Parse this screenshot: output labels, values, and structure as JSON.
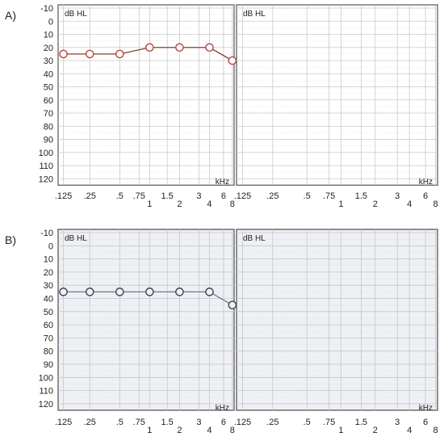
{
  "panels": [
    {
      "label": "A)",
      "theme": {
        "bg": "#ffffff",
        "grid": "#c9c9c9",
        "frame": "#555555",
        "line": "#8a3a34",
        "marker": "#b5473f"
      }
    },
    {
      "label": "B)",
      "theme": {
        "bg": "#eef0f4",
        "grid": "#c2c6cf",
        "frame": "#4a4a4a",
        "line": "#6f7684",
        "marker": "#3e4453"
      }
    }
  ],
  "chart_data": [
    {
      "type": "line",
      "panel": "A",
      "ylabel": "dB HL",
      "xunit": "kHz",
      "y_ticks": [
        "-10",
        "0",
        "10",
        "20",
        "30",
        "40",
        "50",
        "60",
        "70",
        "80",
        "90",
        "100",
        "110",
        "120"
      ],
      "ylim": [
        -10,
        120
      ],
      "y_inverted": true,
      "x_ticks": [
        ".125",
        ".25",
        ".5",
        ".75",
        "1",
        "1.5",
        "2",
        "3",
        "4",
        "6",
        "8"
      ],
      "grid": true,
      "audiograms": [
        {
          "side": "left",
          "x": [
            ".125",
            ".25",
            ".5",
            "1",
            "2",
            "4",
            "8"
          ],
          "values": [
            25,
            25,
            25,
            20,
            20,
            20,
            30
          ]
        },
        {
          "side": "right",
          "x": [],
          "values": []
        }
      ]
    },
    {
      "type": "line",
      "panel": "B",
      "ylabel": "dB HL",
      "xunit": "kHz",
      "y_ticks": [
        "-10",
        "0",
        "10",
        "20",
        "30",
        "40",
        "50",
        "60",
        "70",
        "80",
        "90",
        "100",
        "110",
        "120"
      ],
      "ylim": [
        -10,
        120
      ],
      "y_inverted": true,
      "x_ticks": [
        ".125",
        ".25",
        ".5",
        ".75",
        "1",
        "1.5",
        "2",
        "3",
        "4",
        "6",
        "8"
      ],
      "grid": true,
      "audiograms": [
        {
          "side": "left",
          "x": [
            ".125",
            ".25",
            ".5",
            "1",
            "2",
            "4",
            "8"
          ],
          "values": [
            35,
            35,
            35,
            35,
            35,
            35,
            45
          ]
        },
        {
          "side": "right",
          "x": [],
          "values": []
        }
      ]
    }
  ]
}
